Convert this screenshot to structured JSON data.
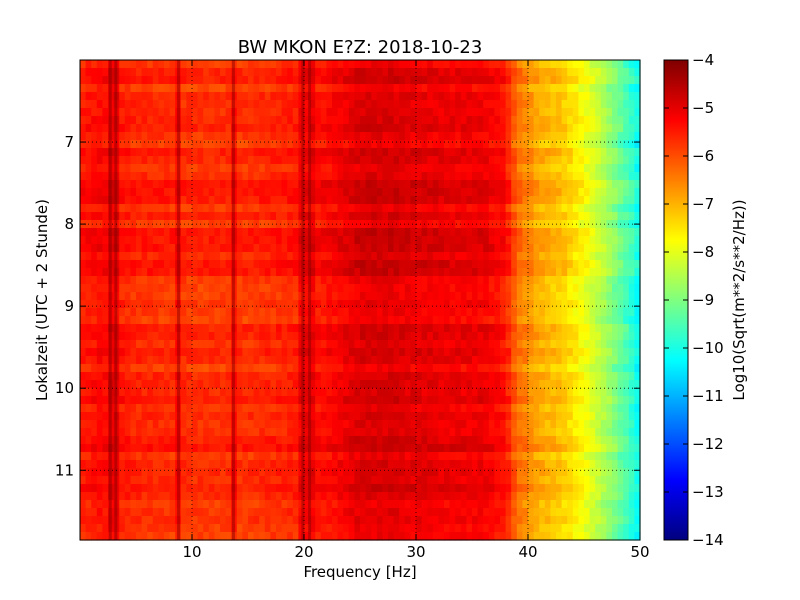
{
  "chart_data": {
    "type": "heatmap",
    "title": "BW MKON E?Z: 2018-10-23",
    "xlabel": "Frequency [Hz]",
    "ylabel": "Lokalzeit (UTC + 2 Stunde)",
    "xlim": [
      0,
      50
    ],
    "ylim": [
      11.85,
      6.0
    ],
    "x_ticks": [
      10,
      20,
      30,
      40,
      50
    ],
    "y_ticks": [
      7,
      8,
      9,
      10,
      11
    ],
    "grid": "dotted",
    "colormap": "jet",
    "colorbar": {
      "label": "Log10(Sqrt(m**2/s**2/Hz))",
      "min": -14,
      "max": -4,
      "ticks": [
        -4,
        -5,
        -6,
        -7,
        -8,
        -9,
        -10,
        -11,
        -12,
        -13,
        -14
      ]
    },
    "spectral_profile": {
      "frequency_hz": [
        0,
        2,
        5,
        10,
        15,
        20,
        23,
        25,
        28,
        30,
        33,
        36,
        38,
        39,
        41,
        43,
        45,
        47,
        49,
        50
      ],
      "value": [
        -5.5,
        -5.3,
        -5.6,
        -5.7,
        -5.7,
        -5.5,
        -5.2,
        -4.9,
        -4.9,
        -5.0,
        -5.1,
        -5.1,
        -5.4,
        -6.3,
        -6.9,
        -7.2,
        -7.8,
        -8.6,
        -9.6,
        -10.2
      ]
    },
    "strong_lines_hz": [
      2.7,
      3.2,
      8.8,
      13.7,
      19.9,
      20.5
    ]
  }
}
